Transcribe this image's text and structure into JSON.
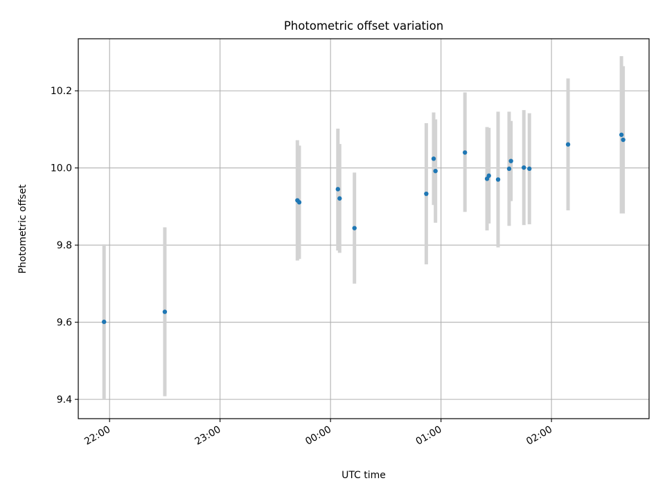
{
  "chart_data": {
    "type": "scatter",
    "title": "Photometric offset variation",
    "xlabel": "UTC time",
    "ylabel": "Photometric offset",
    "x_tick_labels": [
      "22:00",
      "23:00",
      "00:00",
      "01:00",
      "02:00"
    ],
    "y_tick_labels": [
      "9.4",
      "9.6",
      "9.8",
      "10.0",
      "10.2"
    ],
    "x_ticks": [
      "22:00",
      "23:00",
      "00:00",
      "01:00",
      "02:00"
    ],
    "y_ticks": [
      9.4,
      9.6,
      9.8,
      10.0,
      10.2
    ],
    "xlim": [
      "21:43",
      "02:53"
    ],
    "ylim": [
      9.35,
      10.335
    ],
    "grid": true,
    "series": [
      {
        "marker_color": "#1f77b4",
        "errorbar_color": "#d3d3d3",
        "points": [
          {
            "x": "21:57",
            "y": 9.601,
            "low": 9.4,
            "high": 9.802
          },
          {
            "x": "22:30",
            "y": 9.627,
            "low": 9.408,
            "high": 9.846
          },
          {
            "x": "23:42",
            "y": 9.916,
            "low": 9.76,
            "high": 10.072
          },
          {
            "x": "23:43",
            "y": 9.911,
            "low": 9.764,
            "high": 10.058
          },
          {
            "x": "00:04",
            "y": 9.945,
            "low": 9.786,
            "high": 10.102
          },
          {
            "x": "00:04",
            "y": 9.921,
            "low": 9.78,
            "high": 10.062
          },
          {
            "x": "00:13",
            "y": 9.844,
            "low": 9.7,
            "high": 9.988
          },
          {
            "x": "00:52",
            "y": 9.933,
            "low": 9.75,
            "high": 10.116
          },
          {
            "x": "00:56",
            "y": 10.024,
            "low": 9.904,
            "high": 10.144
          },
          {
            "x": "00:57",
            "y": 9.992,
            "low": 9.858,
            "high": 10.126
          },
          {
            "x": "01:13",
            "y": 10.04,
            "low": 9.886,
            "high": 10.196
          },
          {
            "x": "01:25",
            "y": 9.972,
            "low": 9.838,
            "high": 10.106
          },
          {
            "x": "01:26",
            "y": 9.98,
            "low": 9.856,
            "high": 10.104
          },
          {
            "x": "01:31",
            "y": 9.97,
            "low": 9.794,
            "high": 10.146
          },
          {
            "x": "01:37",
            "y": 9.998,
            "low": 9.85,
            "high": 10.146
          },
          {
            "x": "01:38",
            "y": 10.018,
            "low": 9.914,
            "high": 10.122
          },
          {
            "x": "01:45",
            "y": 10.001,
            "low": 9.852,
            "high": 10.15
          },
          {
            "x": "01:48",
            "y": 9.998,
            "low": 9.854,
            "high": 10.142
          },
          {
            "x": "02:09",
            "y": 10.061,
            "low": 9.89,
            "high": 10.232
          },
          {
            "x": "02:38",
            "y": 10.086,
            "low": 9.882,
            "high": 10.29
          },
          {
            "x": "02:38",
            "y": 10.073,
            "low": 9.882,
            "high": 10.264
          }
        ]
      }
    ]
  }
}
